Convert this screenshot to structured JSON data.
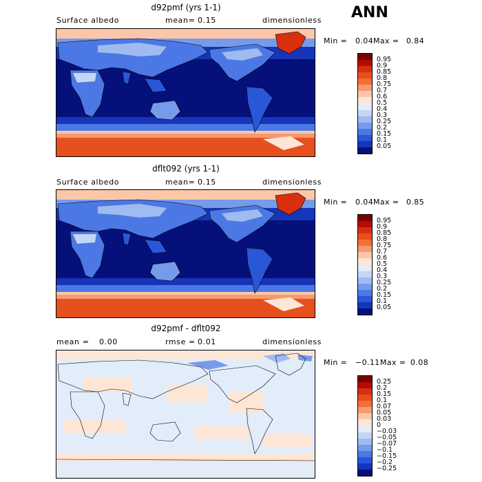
{
  "season": "ANN",
  "panels": [
    {
      "title": "d92pmf (yrs 1-1)",
      "variable": "Surface albedo",
      "mean_label": "mean=",
      "mean_value": "0.15",
      "units": "dimensionless",
      "min_label": "Min =",
      "min_value": "0.04",
      "max_label": "Max =",
      "max_value": "0.84",
      "colorbar": {
        "labels": [
          "0.95",
          "0.9",
          "0.85",
          "0.8",
          "0.75",
          "0.7",
          "0.6",
          "0.5",
          "0.4",
          "0.3",
          "0.25",
          "0.2",
          "0.15",
          "0.1",
          "0.05"
        ],
        "colors": [
          "#7a0000",
          "#b40c00",
          "#d7300e",
          "#e6501f",
          "#f07038",
          "#f79a6f",
          "#fbc7a8",
          "#fde6d6",
          "#e3ecf9",
          "#c4d6f5",
          "#9fbbf0",
          "#769bea",
          "#4b78e4",
          "#2a56d8",
          "#1735b8",
          "#06107a"
        ]
      }
    },
    {
      "title": "dflt092 (yrs 1-1)",
      "variable": "Surface albedo",
      "mean_label": "mean=",
      "mean_value": "0.15",
      "units": "dimensionless",
      "min_label": "Min =",
      "min_value": "0.04",
      "max_label": "Max =",
      "max_value": "0.85",
      "colorbar": {
        "labels": [
          "0.95",
          "0.9",
          "0.85",
          "0.8",
          "0.75",
          "0.7",
          "0.6",
          "0.5",
          "0.4",
          "0.3",
          "0.25",
          "0.2",
          "0.15",
          "0.1",
          "0.05"
        ],
        "colors": [
          "#7a0000",
          "#b40c00",
          "#d7300e",
          "#e6501f",
          "#f07038",
          "#f79a6f",
          "#fbc7a8",
          "#fde6d6",
          "#e3ecf9",
          "#c4d6f5",
          "#9fbbf0",
          "#769bea",
          "#4b78e4",
          "#2a56d8",
          "#1735b8",
          "#06107a"
        ]
      }
    },
    {
      "title": "d92pmf - dflt092",
      "mean_label": "mean =",
      "mean_value": "0.00",
      "rmse_label": "rmse =",
      "rmse_value": "0.01",
      "units": "dimensionless",
      "min_label": "Min =",
      "min_value": "−0.11",
      "max_label": "Max =",
      "max_value": "0.08",
      "colorbar": {
        "labels": [
          "0.25",
          "0.2",
          "0.15",
          "0.1",
          "0.07",
          "0.05",
          "0.03",
          "0",
          "−0.03",
          "−0.05",
          "−0.07",
          "−0.1",
          "−0.15",
          "−0.2",
          "−0.25"
        ],
        "colors": [
          "#7a0000",
          "#b40c00",
          "#d7300e",
          "#e6501f",
          "#f07038",
          "#f79a6f",
          "#fbc7a8",
          "#fde6d6",
          "#e3ecf9",
          "#c4d6f5",
          "#9fbbf0",
          "#769bea",
          "#4b78e4",
          "#2a56d8",
          "#1735b8",
          "#06107a"
        ]
      }
    }
  ]
}
